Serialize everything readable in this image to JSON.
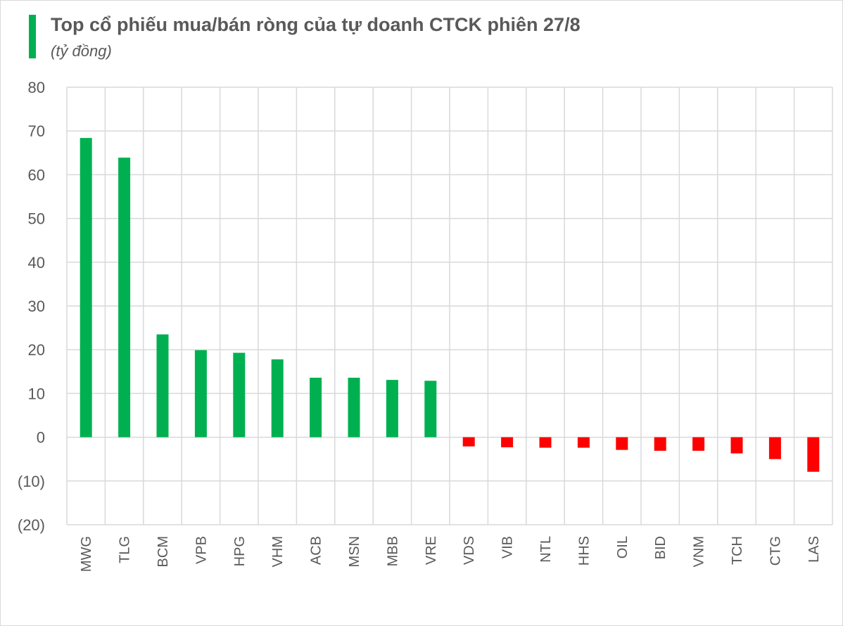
{
  "title": "Top cổ phiếu mua/bán ròng của tự doanh CTCK phiên 27/8",
  "subtitle": "(tỷ đồng)",
  "colors": {
    "positive": "#00b050",
    "negative": "#ff0000",
    "accent_bar": "#00b050",
    "grid": "#d9d9d9",
    "text": "#595959"
  },
  "chart_data": {
    "type": "bar",
    "title": "Top cổ phiếu mua/bán ròng của tự doanh CTCK phiên 27/8",
    "subtitle": "(tỷ đồng)",
    "categories": [
      "MWG",
      "TLG",
      "BCM",
      "VPB",
      "HPG",
      "VHM",
      "ACB",
      "MSN",
      "MBB",
      "VRE",
      "VDS",
      "VIB",
      "NTL",
      "HHS",
      "OIL",
      "BID",
      "VNM",
      "TCH",
      "CTG",
      "LAS"
    ],
    "values": [
      68.4,
      63.9,
      23.5,
      19.9,
      19.3,
      17.8,
      13.6,
      13.6,
      13.1,
      12.9,
      -2.1,
      -2.3,
      -2.4,
      -2.4,
      -2.9,
      -3.1,
      -3.1,
      -3.7,
      -5.0,
      -7.9
    ],
    "ylim": [
      -20,
      80
    ],
    "yticks": [
      80,
      70,
      60,
      50,
      40,
      30,
      20,
      10,
      0,
      -10,
      -20
    ],
    "ytick_labels": [
      "80",
      "70",
      "60",
      "50",
      "40",
      "30",
      "20",
      "10",
      "0",
      "(10)",
      "(20)"
    ],
    "xlabel": "",
    "ylabel": "",
    "grid": true,
    "legend": "none"
  }
}
